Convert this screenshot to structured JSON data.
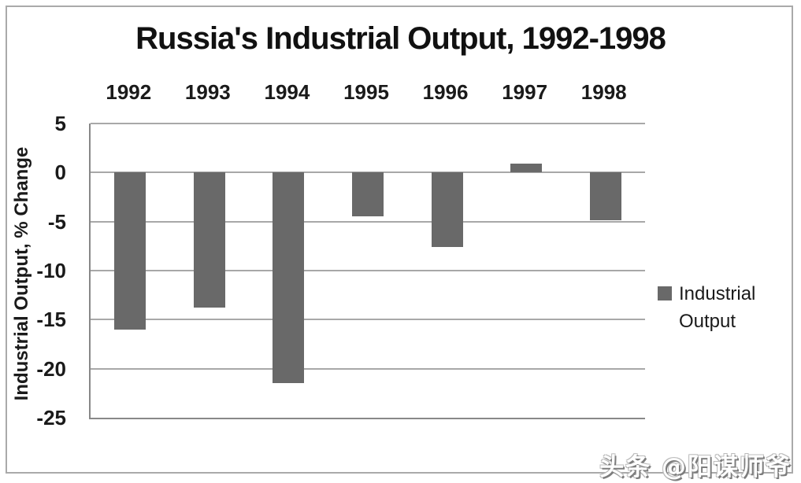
{
  "page": {
    "watermark": "头条 @阳谋师爷"
  },
  "chart_data": {
    "type": "bar",
    "title": "Russia's Industrial Output, 1992-1998",
    "categories": [
      "1992",
      "1993",
      "1994",
      "1995",
      "1996",
      "1997",
      "1998"
    ],
    "series": [
      {
        "name": "Industrial Output",
        "values": [
          -16,
          -13.8,
          -21.5,
          -4.5,
          -7.6,
          0.9,
          -4.9
        ]
      }
    ],
    "xlabel": "",
    "ylabel": "Industrial Output, % Change",
    "ylim": [
      -25,
      5
    ],
    "yticks": [
      5,
      0,
      -5,
      -10,
      -15,
      -20,
      -25
    ],
    "grid": true,
    "legend": {
      "position": "right",
      "entries": [
        "Industrial Output"
      ]
    },
    "colors": {
      "bar": "#696969",
      "gridline": "#a8a8a8",
      "axis": "#888888",
      "text": "#1a1a1a"
    }
  }
}
